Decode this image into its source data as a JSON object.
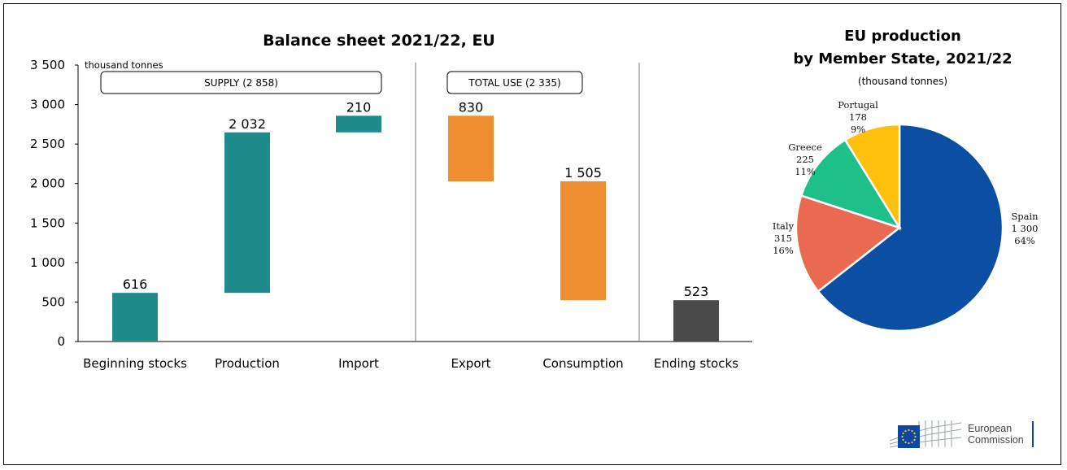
{
  "chart_data": [
    {
      "type": "bar",
      "subtype": "waterfall",
      "title": "Balance sheet 2021/22, EU",
      "ylabel": "thousand tonnes",
      "ylim": [
        0,
        3500
      ],
      "yticks": [
        0,
        500,
        1000,
        1500,
        2000,
        2500,
        3000,
        3500
      ],
      "ytick_labels": [
        "0",
        "500",
        "1 000",
        "1 500",
        "2 000",
        "2 500",
        "3 000",
        "3 500"
      ],
      "grid": false,
      "categories": [
        "Beginning stocks",
        "Production",
        "Import",
        "Export",
        "Consumption",
        "Ending stocks"
      ],
      "values": [
        616,
        2032,
        210,
        830,
        1505,
        523
      ],
      "value_labels": [
        "616",
        "2 032",
        "210",
        "830",
        "1 505",
        "523"
      ],
      "bar_base": [
        0,
        616,
        2648,
        2028,
        523,
        0
      ],
      "bar_top": [
        616,
        2648,
        2858,
        2858,
        2028,
        523
      ],
      "bar_colors": [
        "#1f8a8a",
        "#1f8a8a",
        "#1f8a8a",
        "#ef8e30",
        "#ef8e30",
        "#4a4a4a"
      ],
      "groups": [
        {
          "label": "SUPPLY (2 858)",
          "categories": [
            "Beginning stocks",
            "Production",
            "Import"
          ]
        },
        {
          "label": "TOTAL USE (2 335)",
          "categories": [
            "Export",
            "Consumption"
          ]
        }
      ]
    },
    {
      "type": "pie",
      "title_line1": "EU production",
      "title_line2": "by Member State, 2021/22",
      "subtitle": "(thousand tonnes)",
      "labels": [
        "Spain",
        "Italy",
        "Greece",
        "Portugal"
      ],
      "values": [
        1300,
        315,
        225,
        178
      ],
      "value_labels": [
        "1 300",
        "315",
        "225",
        "178"
      ],
      "percent_labels": [
        "64%",
        "16%",
        "11%",
        "9%"
      ],
      "colors": [
        "#0b4ea2",
        "#e96a51",
        "#1fbf8a",
        "#fcc00d"
      ]
    }
  ],
  "footer": {
    "logo_line1": "European",
    "logo_line2": "Commission"
  }
}
